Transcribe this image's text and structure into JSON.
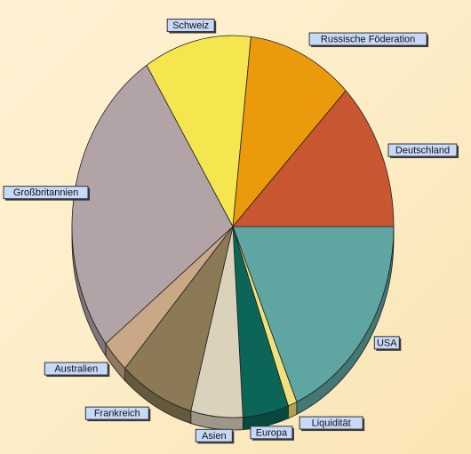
{
  "chart_data": {
    "type": "pie",
    "title": "",
    "style": "3d-pie-with-callout-labels",
    "slices": [
      {
        "label": "USA",
        "value": 18.5,
        "color": "#5fa6a2"
      },
      {
        "label": "Liquidität",
        "value": 0.9,
        "color": "#efe27c"
      },
      {
        "label": "Europa",
        "value": 4.6,
        "color": "#0b6657"
      },
      {
        "label": "Asien",
        "value": 5.2,
        "color": "#dbd2bb"
      },
      {
        "label": "Frankreich",
        "value": 7.5,
        "color": "#8b7a55"
      },
      {
        "label": "Australien",
        "value": 2.8,
        "color": "#c9a885"
      },
      {
        "label": "Großbritannien",
        "value": 26.5,
        "color": "#b2a3a6"
      },
      {
        "label": "Schweiz",
        "value": 10.8,
        "color": "#f5e64f"
      },
      {
        "label": "Russische Föderation",
        "value": 10.6,
        "color": "#ea9a0a"
      },
      {
        "label": "Deutschland",
        "value": 12.6,
        "color": "#c85732"
      }
    ],
    "legend": "none"
  }
}
